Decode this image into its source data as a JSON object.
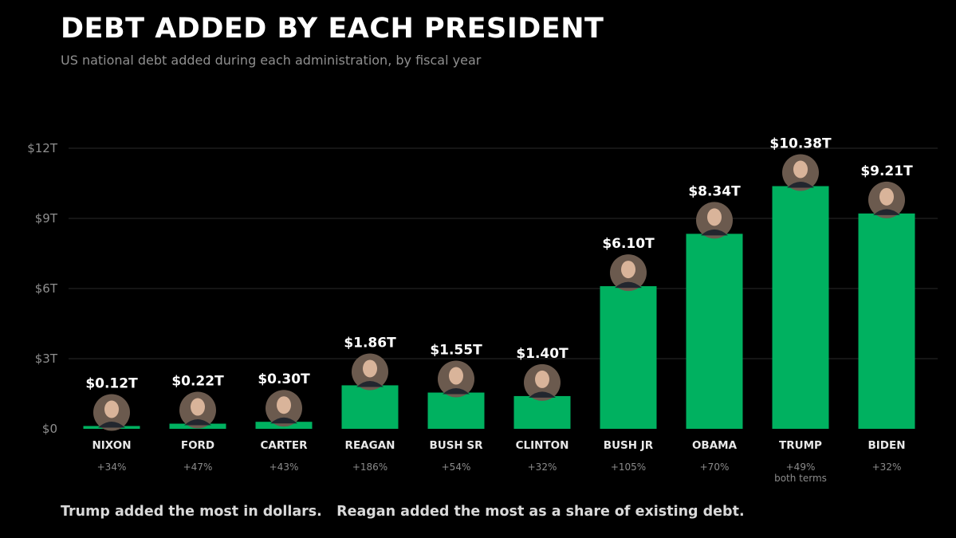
{
  "title": "DEBT ADDED BY EACH PRESIDENT",
  "subtitle": "US national debt added during each administration, by fiscal year",
  "footnote": "Trump added the most in dollars.   Reagan added the most as a share of existing debt.",
  "colors": {
    "background": "#000000",
    "bar": "#00b160",
    "gridline": "#1c1c1c",
    "muted_text": "#8f8f8f"
  },
  "chart_data": {
    "type": "bar",
    "categories": [
      "NIXON",
      "FORD",
      "CARTER",
      "REAGAN",
      "BUSH SR",
      "CLINTON",
      "BUSH JR",
      "OBAMA",
      "TRUMP",
      "BIDEN"
    ],
    "values": [
      0.12,
      0.22,
      0.3,
      1.86,
      1.55,
      1.4,
      6.1,
      8.34,
      10.38,
      9.21
    ],
    "value_labels": [
      "$0.12T",
      "$0.22T",
      "$0.30T",
      "$1.86T",
      "$1.55T",
      "$1.40T",
      "$6.10T",
      "$8.34T",
      "$10.38T",
      "$9.21T"
    ],
    "percent_labels": [
      "+34%",
      "+47%",
      "+43%",
      "+186%",
      "+54%",
      "+32%",
      "+105%",
      "+70%",
      "+49%",
      "+32%"
    ],
    "percent_notes": [
      "",
      "",
      "",
      "",
      "",
      "",
      "",
      "",
      "both terms",
      ""
    ],
    "unit": "trillion USD",
    "ylim": [
      0,
      12
    ],
    "yticks": [
      0,
      3,
      6,
      9,
      12
    ],
    "ytick_labels": [
      "$0",
      "$3T",
      "$6T",
      "$9T",
      "$12T"
    ],
    "grid": true,
    "legend": "none",
    "portrait_icons": [
      "portrait-icon",
      "portrait-icon",
      "portrait-icon",
      "portrait-icon",
      "portrait-icon",
      "portrait-icon",
      "portrait-icon",
      "portrait-icon",
      "portrait-icon",
      "portrait-icon"
    ]
  }
}
